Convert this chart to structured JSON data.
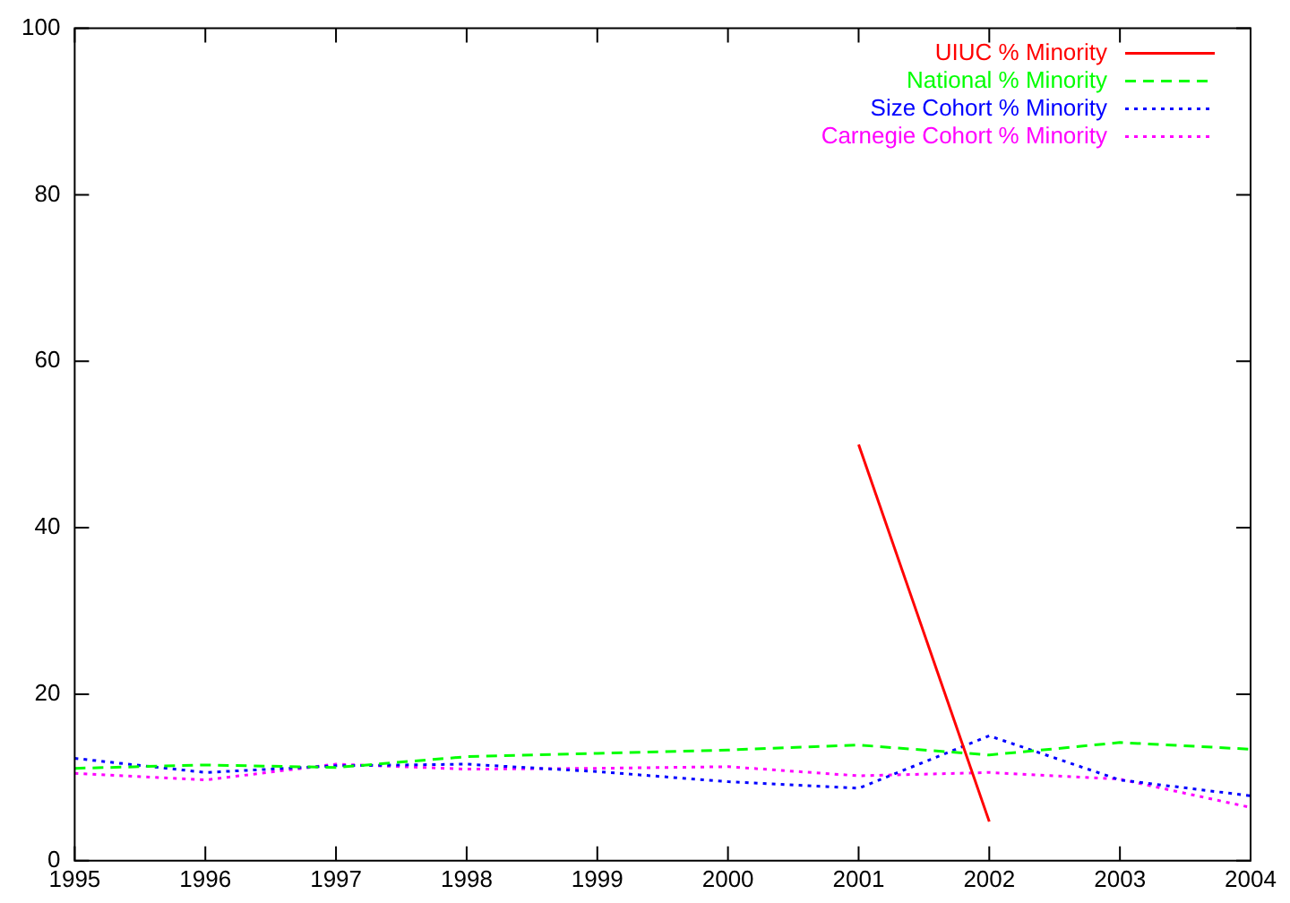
{
  "chart_data": {
    "type": "line",
    "x": [
      1995,
      1996,
      1997,
      1998,
      1999,
      2000,
      2001,
      2002,
      2003,
      2004
    ],
    "series": [
      {
        "name": "UIUC % Minority",
        "color": "#ff0000",
        "line_style": "solid",
        "values": [
          null,
          null,
          null,
          null,
          null,
          null,
          50,
          4.7,
          null,
          null
        ]
      },
      {
        "name": "National % Minority",
        "color": "#00ff00",
        "line_style": "dashed",
        "values": [
          11.1,
          11.5,
          11.2,
          12.5,
          12.9,
          13.3,
          13.9,
          12.7,
          14.2,
          13.4
        ]
      },
      {
        "name": "Size Cohort % Minority",
        "color": "#0000ff",
        "line_style": "dotted",
        "values": [
          12.3,
          10.6,
          11.4,
          11.6,
          10.7,
          9.5,
          8.7,
          15.0,
          9.7,
          7.8
        ]
      },
      {
        "name": "Carnegie Cohort % Minority",
        "color": "#ff00ff",
        "line_style": "dotted",
        "values": [
          10.5,
          9.7,
          11.6,
          11.0,
          11.1,
          11.3,
          10.2,
          10.6,
          9.8,
          6.4
        ]
      }
    ],
    "xlim": [
      1995,
      2004
    ],
    "xticks": [
      1995,
      1996,
      1997,
      1998,
      1999,
      2000,
      2001,
      2002,
      2003,
      2004
    ],
    "ylim": [
      0,
      100
    ],
    "yticks": [
      0,
      20,
      40,
      60,
      80,
      100
    ],
    "grid": false,
    "legend": "top right",
    "marker": "none"
  }
}
